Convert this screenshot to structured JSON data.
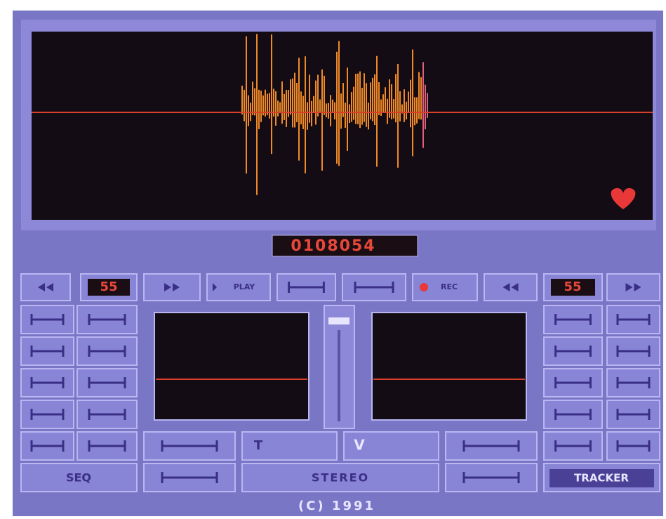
{
  "counter": "0108054",
  "transport": {
    "left_speed": "55",
    "play": "PLAY",
    "rec": "REC",
    "right_speed": "55"
  },
  "tools": {
    "t_label": "T",
    "v_label": "V",
    "seq": "SEQ",
    "stereo": "STEREO",
    "tracker": "TRACKER"
  },
  "footer": "(C) 1991"
}
